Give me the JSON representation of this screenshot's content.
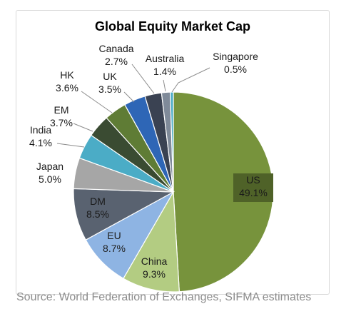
{
  "chart_data": {
    "type": "pie",
    "title": "Global Equity Market Cap",
    "categories": [
      "US",
      "China",
      "EU",
      "DM",
      "Japan",
      "India",
      "EM",
      "HK",
      "UK",
      "Canada",
      "Australia",
      "Singapore"
    ],
    "values": [
      49.1,
      9.3,
      8.7,
      8.5,
      5.0,
      4.1,
      3.7,
      3.6,
      3.5,
      2.7,
      1.4,
      0.5
    ],
    "labels": [
      {
        "name": "US",
        "value": "49.1%"
      },
      {
        "name": "China",
        "value": "9.3%"
      },
      {
        "name": "EU",
        "value": "8.7%"
      },
      {
        "name": "DM",
        "value": "8.5%"
      },
      {
        "name": "Japan",
        "value": "5.0%"
      },
      {
        "name": "India",
        "value": "4.1%"
      },
      {
        "name": "EM",
        "value": "3.7%"
      },
      {
        "name": "HK",
        "value": "3.6%"
      },
      {
        "name": "UK",
        "value": "3.5%"
      },
      {
        "name": "Canada",
        "value": "2.7%"
      },
      {
        "name": "Australia",
        "value": "1.4%"
      },
      {
        "name": "Singapore",
        "value": "0.5%"
      }
    ],
    "colors": [
      "#77933c",
      "#b3cc82",
      "#8eb4e3",
      "#596270",
      "#a6a6a6",
      "#4bacc6",
      "#3a4b32",
      "#5f7c35",
      "#2e66b6",
      "#3a4252",
      "#7f8a99",
      "#4bacc6"
    ]
  },
  "source": "Source: World Federation of Exchanges, SIFMA estimates"
}
